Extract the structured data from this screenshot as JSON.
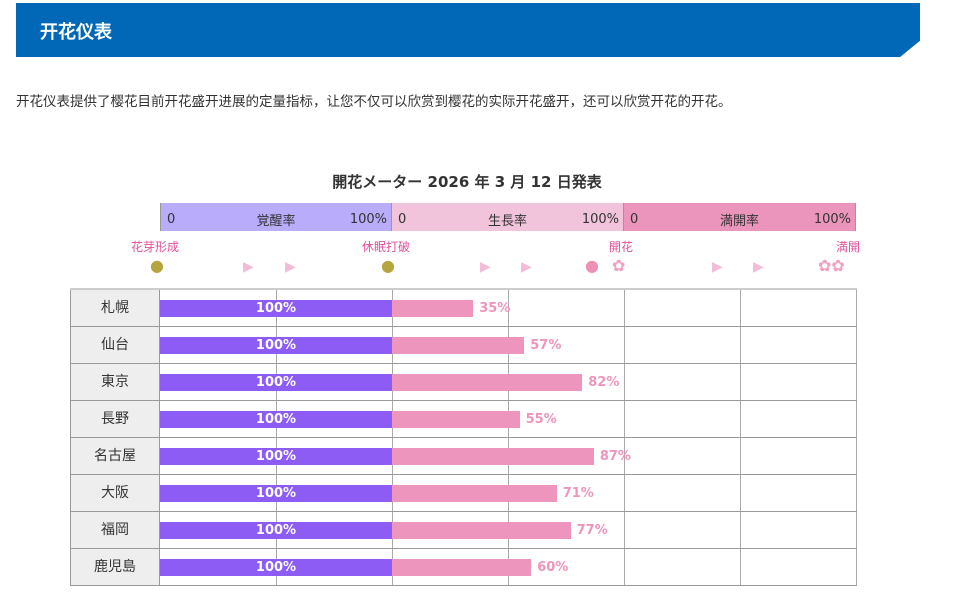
{
  "header": {
    "title": "开花仪表"
  },
  "description": "开花仪表提供了樱花目前开花盛开进展的定量指标，让您不仅可以欣赏到樱花的实际开花盛开，还可以欣赏开花的开花。",
  "chart_title": "開花メーター 2026 年 3 月 12 日発表",
  "bands": [
    {
      "min": "0",
      "label": "覚醒率",
      "max": "100%",
      "color": "#b9acfb"
    },
    {
      "min": "0",
      "label": "生長率",
      "max": "100%",
      "color": "#f2c4dc"
    },
    {
      "min": "0",
      "label": "満開率",
      "max": "100%",
      "color": "#ec95bc"
    }
  ],
  "stages": [
    "花芽形成",
    "休眠打破",
    "開花",
    "満開"
  ],
  "colors": {
    "awakening": "#8c5cf5",
    "growth": "#ee95bd"
  },
  "rows": [
    {
      "city": "札幌",
      "awakening": "100%",
      "growth": 35,
      "growth_label": "35%"
    },
    {
      "city": "仙台",
      "awakening": "100%",
      "growth": 57,
      "growth_label": "57%"
    },
    {
      "city": "東京",
      "awakening": "100%",
      "growth": 82,
      "growth_label": "82%"
    },
    {
      "city": "長野",
      "awakening": "100%",
      "growth": 55,
      "growth_label": "55%"
    },
    {
      "city": "名古屋",
      "awakening": "100%",
      "growth": 87,
      "growth_label": "87%"
    },
    {
      "city": "大阪",
      "awakening": "100%",
      "growth": 71,
      "growth_label": "71%"
    },
    {
      "city": "福岡",
      "awakening": "100%",
      "growth": 77,
      "growth_label": "77%"
    },
    {
      "city": "鹿児島",
      "awakening": "100%",
      "growth": 60,
      "growth_label": "60%"
    }
  ]
}
